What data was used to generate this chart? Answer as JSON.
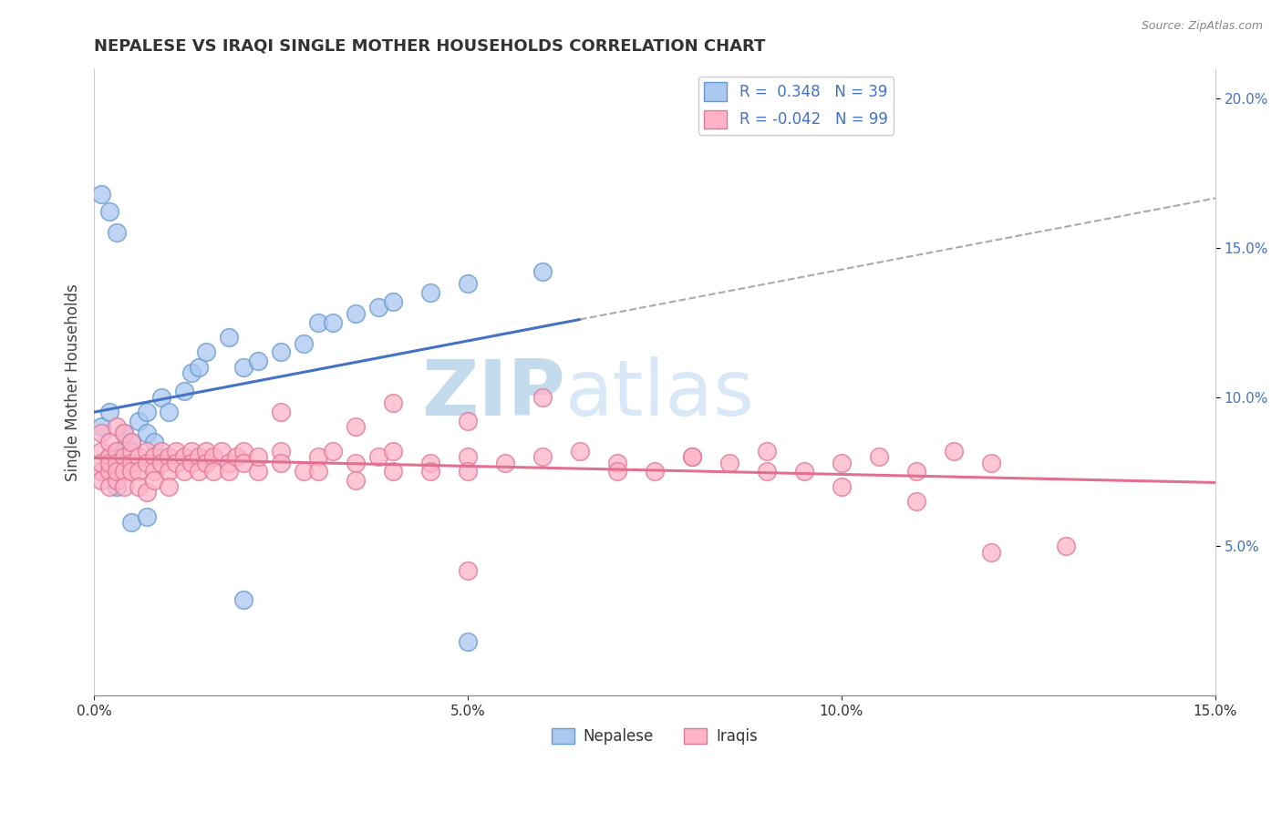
{
  "title": "NEPALESE VS IRAQI SINGLE MOTHER HOUSEHOLDS CORRELATION CHART",
  "source": "Source: ZipAtlas.com",
  "ylabel": "Single Mother Households",
  "xlim": [
    0.0,
    0.15
  ],
  "ylim": [
    0.0,
    0.21
  ],
  "yticks_right": [
    0.05,
    0.1,
    0.15,
    0.2
  ],
  "nepalese_color": "#aac8f0",
  "nepalese_edge": "#6699cc",
  "iraqi_color": "#ffb3c8",
  "iraqi_edge": "#dd7799",
  "nepalese_R": 0.348,
  "nepalese_N": 39,
  "iraqi_R": -0.042,
  "iraqi_N": 99,
  "trend_nepalese_color": "#4472c4",
  "trend_iraqi_color": "#e07090",
  "extrapolation_color": "#aaaaaa",
  "legend_label_nepalese": "Nepalese",
  "legend_label_iraqi": "Iraqis",
  "watermark_zip": "ZIP",
  "watermark_atlas": "atlas",
  "nepalese_x": [
    0.001,
    0.001,
    0.002,
    0.002,
    0.003,
    0.003,
    0.004,
    0.005,
    0.005,
    0.006,
    0.007,
    0.007,
    0.008,
    0.009,
    0.01,
    0.012,
    0.013,
    0.014,
    0.015,
    0.018,
    0.02,
    0.022,
    0.025,
    0.028,
    0.03,
    0.032,
    0.035,
    0.038,
    0.04,
    0.045,
    0.05,
    0.06,
    0.001,
    0.002,
    0.003,
    0.005,
    0.007,
    0.02,
    0.05
  ],
  "nepalese_y": [
    0.09,
    0.075,
    0.095,
    0.08,
    0.082,
    0.07,
    0.088,
    0.085,
    0.078,
    0.092,
    0.088,
    0.095,
    0.085,
    0.1,
    0.095,
    0.102,
    0.108,
    0.11,
    0.115,
    0.12,
    0.11,
    0.112,
    0.115,
    0.118,
    0.125,
    0.125,
    0.128,
    0.13,
    0.132,
    0.135,
    0.138,
    0.142,
    0.168,
    0.162,
    0.155,
    0.058,
    0.06,
    0.032,
    0.018
  ],
  "iraqi_x": [
    0.001,
    0.001,
    0.001,
    0.001,
    0.001,
    0.002,
    0.002,
    0.002,
    0.002,
    0.002,
    0.003,
    0.003,
    0.003,
    0.003,
    0.003,
    0.004,
    0.004,
    0.004,
    0.004,
    0.005,
    0.005,
    0.005,
    0.005,
    0.006,
    0.006,
    0.006,
    0.007,
    0.007,
    0.007,
    0.008,
    0.008,
    0.008,
    0.009,
    0.009,
    0.01,
    0.01,
    0.01,
    0.011,
    0.011,
    0.012,
    0.012,
    0.013,
    0.013,
    0.014,
    0.014,
    0.015,
    0.015,
    0.016,
    0.016,
    0.017,
    0.018,
    0.018,
    0.019,
    0.02,
    0.02,
    0.022,
    0.022,
    0.025,
    0.025,
    0.028,
    0.03,
    0.03,
    0.032,
    0.035,
    0.035,
    0.038,
    0.04,
    0.04,
    0.045,
    0.045,
    0.05,
    0.05,
    0.055,
    0.06,
    0.065,
    0.07,
    0.075,
    0.08,
    0.085,
    0.09,
    0.095,
    0.1,
    0.105,
    0.11,
    0.115,
    0.12,
    0.025,
    0.035,
    0.04,
    0.05,
    0.06,
    0.07,
    0.08,
    0.09,
    0.1,
    0.11,
    0.12,
    0.13,
    0.05
  ],
  "iraqi_y": [
    0.075,
    0.082,
    0.078,
    0.072,
    0.088,
    0.08,
    0.075,
    0.085,
    0.07,
    0.078,
    0.082,
    0.078,
    0.072,
    0.09,
    0.075,
    0.08,
    0.075,
    0.088,
    0.07,
    0.082,
    0.078,
    0.075,
    0.085,
    0.08,
    0.075,
    0.07,
    0.082,
    0.078,
    0.068,
    0.08,
    0.075,
    0.072,
    0.082,
    0.078,
    0.08,
    0.075,
    0.07,
    0.082,
    0.078,
    0.08,
    0.075,
    0.082,
    0.078,
    0.08,
    0.075,
    0.082,
    0.078,
    0.08,
    0.075,
    0.082,
    0.078,
    0.075,
    0.08,
    0.082,
    0.078,
    0.075,
    0.08,
    0.082,
    0.078,
    0.075,
    0.08,
    0.075,
    0.082,
    0.078,
    0.072,
    0.08,
    0.075,
    0.082,
    0.078,
    0.075,
    0.08,
    0.075,
    0.078,
    0.08,
    0.082,
    0.078,
    0.075,
    0.08,
    0.078,
    0.082,
    0.075,
    0.078,
    0.08,
    0.075,
    0.082,
    0.078,
    0.095,
    0.09,
    0.098,
    0.092,
    0.1,
    0.075,
    0.08,
    0.075,
    0.07,
    0.065,
    0.048,
    0.05,
    0.042
  ]
}
